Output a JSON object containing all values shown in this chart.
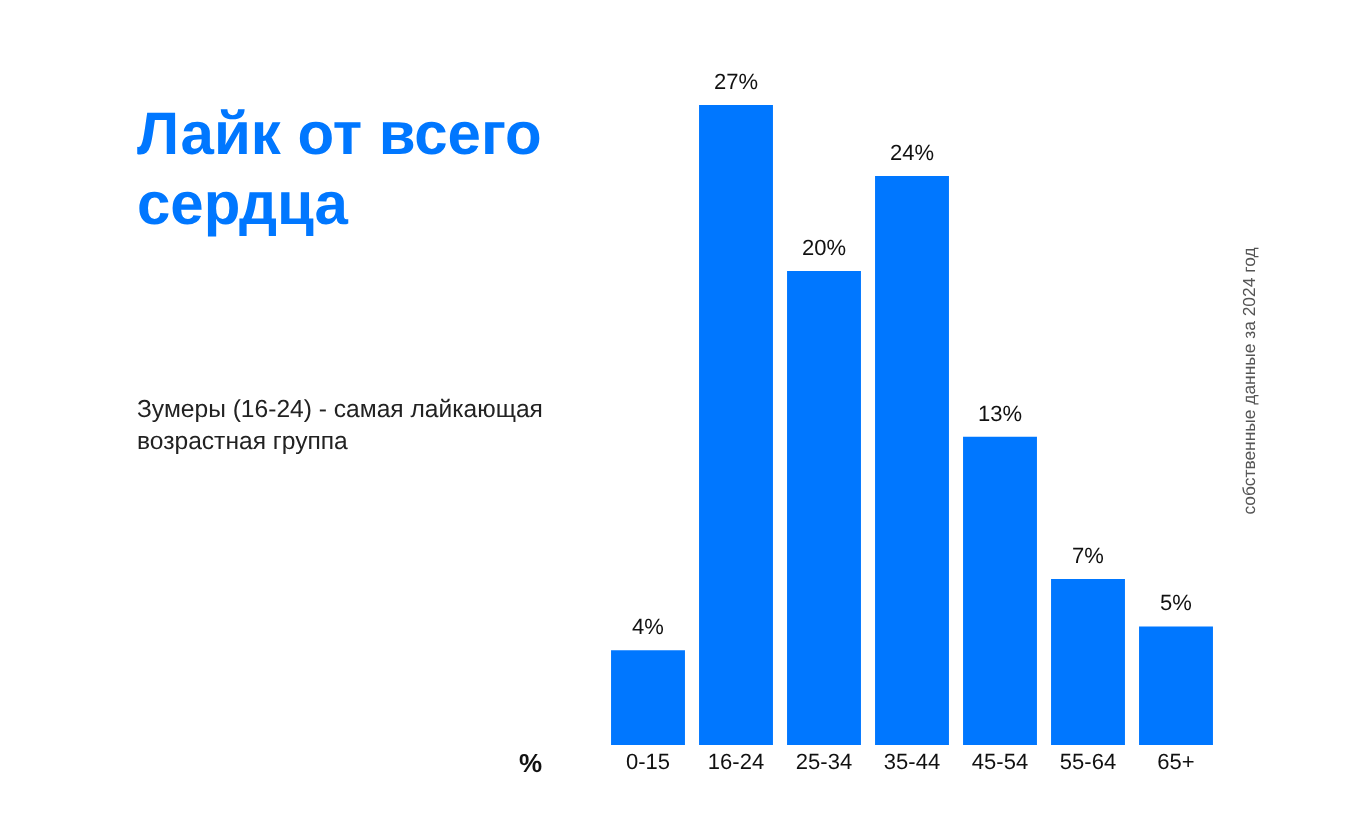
{
  "chart_data": {
    "type": "bar",
    "title": "Лайк от всего сердца",
    "subtitle": "Зумеры (16-24) - самая лайкающая возрастная группа",
    "categories": [
      "0-15",
      "16-24",
      "25-34",
      "35-44",
      "45-54",
      "55-64",
      "65+"
    ],
    "values": [
      4,
      27,
      20,
      24,
      13,
      7,
      5
    ],
    "value_labels": [
      "4%",
      "27%",
      "20%",
      "24%",
      "13%",
      "7%",
      "5%"
    ],
    "color": "#0077ff",
    "annotations": [
      "собственные данные за 2024 год",
      "%"
    ]
  }
}
